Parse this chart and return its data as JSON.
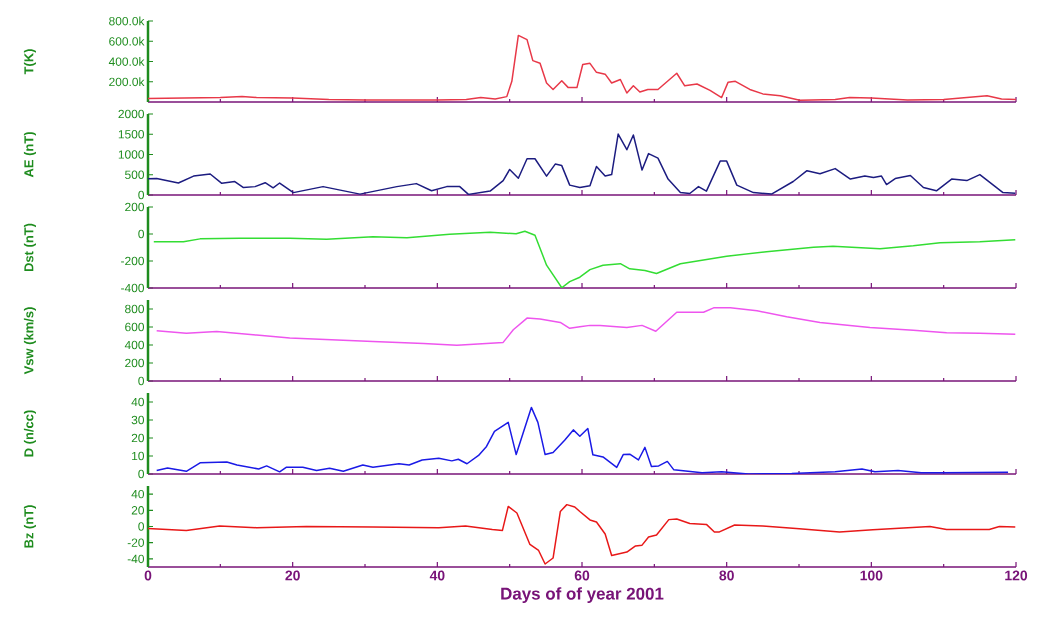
{
  "chart_data": [
    {
      "type": "line",
      "ylabel": "T(K)",
      "xlim": [
        0,
        120
      ],
      "xticks": [
        0,
        20,
        40,
        60,
        80,
        100,
        120
      ],
      "ylim": [
        0,
        800000
      ],
      "yticks": [
        {
          "value": 200000,
          "label": "200.0k"
        },
        {
          "value": 400000,
          "label": "400.0k"
        },
        {
          "value": 600000,
          "label": "600.0k"
        },
        {
          "value": 800000,
          "label": "800.0k"
        }
      ],
      "tick_labels": "y",
      "series": [
        {
          "color": "#e83848",
          "x": [
            0,
            5,
            10,
            13,
            15,
            20,
            25,
            30,
            35,
            40,
            44,
            46,
            48,
            49.6,
            50.3,
            51.2,
            52.4,
            53.2,
            54.2,
            55.1,
            56,
            57.2,
            58.1,
            59.3,
            60.1,
            61.1,
            62,
            63.2,
            64.1,
            65.3,
            66.2,
            67.1,
            68,
            69.1,
            70.5,
            73.1,
            74.2,
            75.9,
            77.7,
            79.3,
            80.2,
            81.2,
            83.2,
            85,
            87.4,
            90.1,
            95,
            97,
            100,
            105,
            110,
            116,
            118,
            120
          ],
          "values": [
            35000,
            40000,
            45000,
            55000,
            45000,
            40000,
            25000,
            20000,
            20000,
            20000,
            25000,
            45000,
            30000,
            53000,
            204000,
            658000,
            616000,
            409000,
            382000,
            187000,
            124000,
            210000,
            142000,
            142000,
            370000,
            382000,
            293000,
            275000,
            187000,
            222000,
            89000,
            160000,
            98000,
            124000,
            124000,
            284000,
            160000,
            178000,
            115000,
            44000,
            196000,
            204000,
            124000,
            80000,
            62000,
            18000,
            25000,
            44000,
            40000,
            20000,
            25000,
            62000,
            30000,
            25000
          ]
        }
      ]
    },
    {
      "type": "line",
      "ylabel": "AE (nT)",
      "xlim": [
        0,
        120
      ],
      "xticks": [
        0,
        20,
        40,
        60,
        80,
        100,
        120
      ],
      "ylim": [
        0,
        2000
      ],
      "yticks": [
        0,
        500,
        1000,
        1500,
        2000
      ],
      "tick_labels": "y",
      "series": [
        {
          "color": "#1c1c80",
          "x": [
            0,
            1.2,
            4.2,
            6.3,
            8.6,
            10.2,
            12,
            13.2,
            14.8,
            16.2,
            17.3,
            18.2,
            20.1,
            24.2,
            29.3,
            34.4,
            37.1,
            39.2,
            41.3,
            43.1,
            44.3,
            47.3,
            49.1,
            50,
            51.2,
            52.4,
            53.5,
            55.1,
            56.3,
            57.2,
            58.3,
            59.7,
            61.1,
            62,
            63.2,
            64.1,
            65,
            66.2,
            67.1,
            68.3,
            69.2,
            70.5,
            71.9,
            73.6,
            74.9,
            76.1,
            77.2,
            79.1,
            80,
            81.4,
            83.7,
            86.2,
            89.2,
            91.1,
            92.9,
            95,
            97.1,
            99.1,
            100.3,
            101.4,
            102.1,
            103.3,
            105.4,
            107.2,
            109,
            111.1,
            113.2,
            115,
            118.2,
            119.9
          ],
          "values": [
            400,
            407,
            296,
            467,
            518,
            289,
            333,
            185,
            207,
            304,
            178,
            296,
            59,
            207,
            22,
            207,
            281,
            104,
            207,
            207,
            15,
            96,
            355,
            630,
            415,
            896,
            896,
            467,
            763,
            726,
            244,
            185,
            230,
            704,
            467,
            504,
            1504,
            1118,
            1481,
            615,
            1022,
            911,
            393,
            59,
            37,
            207,
            96,
            837,
            837,
            244,
            59,
            22,
            333,
            600,
            526,
            652,
            393,
            467,
            430,
            467,
            259,
            407,
            482,
            185,
            104,
            393,
            356,
            504,
            59,
            44
          ]
        }
      ]
    },
    {
      "type": "line",
      "ylabel": "Dst (nT)",
      "xlim": [
        0,
        120
      ],
      "xticks": [
        0,
        20,
        40,
        60,
        80,
        100,
        120
      ],
      "ylim": [
        -400,
        200
      ],
      "yticks": [
        -400,
        -200,
        0,
        200
      ],
      "tick_labels": "y",
      "series": [
        {
          "color": "#33dd33",
          "x": [
            0.8,
            4.9,
            7.2,
            12.7,
            19.6,
            24.7,
            31.1,
            35.8,
            41.7,
            47.3,
            50.9,
            52.1,
            53.5,
            55.1,
            57.2,
            58.3,
            59.7,
            61.1,
            62.9,
            65.3,
            66.6,
            68.7,
            70.3,
            73.6,
            80,
            85.5,
            92,
            94.7,
            101.2,
            105.8,
            109.5,
            115,
            119.9
          ],
          "values": [
            -58,
            -58,
            -36,
            -31,
            -31,
            -38,
            -20,
            -27,
            -2,
            13,
            2,
            20,
            -9,
            -231,
            -398,
            -353,
            -320,
            -264,
            -231,
            -220,
            -258,
            -271,
            -293,
            -220,
            -164,
            -131,
            -98,
            -91,
            -109,
            -87,
            -64,
            -58,
            -42
          ]
        }
      ]
    },
    {
      "type": "line",
      "ylabel": "Vsw (km/s)",
      "xlim": [
        0,
        120
      ],
      "xticks": [
        0,
        20,
        40,
        60,
        80,
        100,
        120
      ],
      "ylim": [
        0,
        900
      ],
      "yticks": [
        0,
        200,
        400,
        600,
        800
      ],
      "tick_labels": "y",
      "series": [
        {
          "color": "#ee55ee",
          "x": [
            1.2,
            5.3,
            9.5,
            15,
            19.6,
            31.1,
            38.1,
            42.7,
            49.1,
            50.5,
            52.4,
            54.2,
            57,
            58.3,
            59.7,
            61.1,
            62.5,
            66.2,
            68.3,
            70.2,
            73.1,
            76.8,
            78.2,
            80.5,
            84.2,
            88.3,
            92.9,
            99.8,
            105.8,
            110.4,
            115,
            119.9
          ],
          "values": [
            559,
            530,
            549,
            510,
            478,
            439,
            416,
            397,
            429,
            569,
            699,
            690,
            651,
            585,
            602,
            618,
            618,
            595,
            618,
            553,
            764,
            764,
            813,
            813,
            780,
            715,
            651,
            595,
            563,
            537,
            530,
            520
          ]
        }
      ]
    },
    {
      "type": "line",
      "ylabel": "D (n/cc)",
      "xlim": [
        0,
        120
      ],
      "xticks": [
        0,
        20,
        40,
        60,
        80,
        100,
        120
      ],
      "ylim": [
        0,
        45
      ],
      "yticks": [
        0,
        10,
        20,
        30,
        40
      ],
      "tick_labels": "y",
      "series": [
        {
          "color": "#1a1ae6",
          "x": [
            1.2,
            2.7,
            5.3,
            7.2,
            10.9,
            12.3,
            15.3,
            16.4,
            18.2,
            19.1,
            21.4,
            23.3,
            25.1,
            27,
            29.7,
            31.1,
            34.7,
            36.1,
            37.9,
            40.2,
            42,
            42.9,
            44.1,
            45.7,
            46.8,
            47.9,
            49.8,
            50.9,
            53,
            53.9,
            54.9,
            56,
            57.6,
            58.8,
            59.7,
            60.8,
            61.5,
            62.9,
            64.8,
            65.7,
            66.6,
            67.8,
            68.7,
            69.6,
            70.6,
            71.8,
            72.7,
            76.6,
            79.3,
            83,
            89,
            95,
            98.7,
            100.5,
            103.7,
            106.9,
            109.7,
            118.9
          ],
          "values": [
            2,
            3.3,
            1.5,
            6.2,
            6.7,
            5,
            2.8,
            4.5,
            1.2,
            3.7,
            3.7,
            2,
            3.2,
            1.5,
            5,
            3.7,
            5.7,
            5,
            7.8,
            8.7,
            7.3,
            8.2,
            5.7,
            10.3,
            15.3,
            23.7,
            28.7,
            10.8,
            37,
            28.7,
            10.8,
            12,
            18.7,
            24.5,
            21,
            25.3,
            10.7,
            9.5,
            3.7,
            10.8,
            11,
            7.8,
            14.8,
            4.2,
            4.5,
            7,
            2.3,
            0.7,
            1.2,
            0,
            0.3,
            1.2,
            2.8,
            1.2,
            2,
            0.7,
            0.7,
            1
          ]
        }
      ]
    },
    {
      "type": "line",
      "ylabel": "Bz (nT)",
      "xlabel": "Days of of year 2001",
      "xlim": [
        0,
        120
      ],
      "xticks": [
        0,
        20,
        40,
        60,
        80,
        100,
        120
      ],
      "ylim": [
        -50,
        50
      ],
      "yticks": [
        -40,
        -20,
        0,
        20,
        40
      ],
      "series": [
        {
          "color": "#e81818",
          "x": [
            0,
            5.3,
            9.9,
            15,
            21.9,
            31.1,
            40.2,
            43.9,
            47.6,
            49,
            49.8,
            51,
            52.8,
            54,
            54.9,
            56,
            57,
            57.9,
            59,
            59.7,
            61.1,
            62,
            63.2,
            64.1,
            66.2,
            67.4,
            68.3,
            69.2,
            70.3,
            72,
            73.1,
            74.9,
            77.2,
            78.3,
            79,
            81.1,
            85,
            89.6,
            95.6,
            100.2,
            108.1,
            110.4,
            116.3,
            117.7,
            119.9
          ],
          "values": [
            -2.6,
            -4.8,
            0.7,
            -1.5,
            0,
            -0.7,
            -1.5,
            0.7,
            -3.7,
            -4.8,
            24.8,
            16.7,
            -22.2,
            -29.6,
            -46.3,
            -38.9,
            18.5,
            27,
            24.1,
            18.5,
            8.1,
            5.6,
            -9.3,
            -35.9,
            -31.5,
            -24,
            -23,
            -13,
            -10.4,
            8.5,
            9.3,
            3.7,
            2.6,
            -6.7,
            -6.7,
            1.8,
            0.7,
            -2.6,
            -6.7,
            -4.1,
            0,
            -3.7,
            -3.7,
            0,
            -0.7
          ]
        }
      ]
    }
  ]
}
